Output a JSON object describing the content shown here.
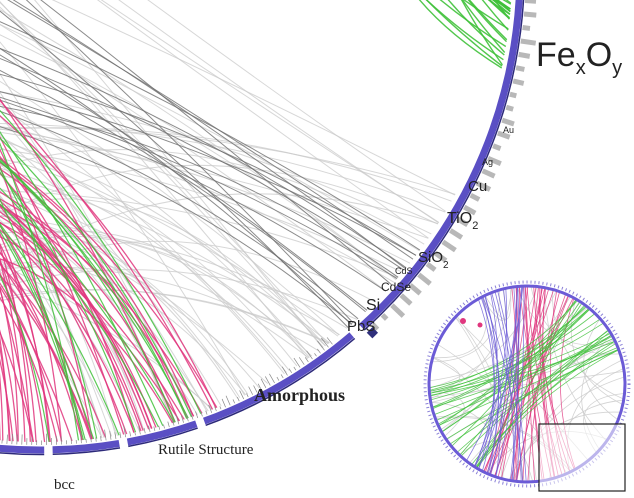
{
  "colors": {
    "ring": "#5a4fc4",
    "ring_dark": "#2d2a7a",
    "green": "#3fc13a",
    "pink": "#e0367e",
    "gray": "#c9c9c9",
    "dark_gray": "#6e6e6e",
    "tick_gray": "#b8b8b8",
    "cds_marker": "#2f2f7a",
    "inset_purple": "#6b5bd6"
  },
  "labels": {
    "fexoy_base": "Fe",
    "fexoy_sub1": "x",
    "fexoy_mid": "O",
    "fexoy_sub2": "y",
    "au": "Au",
    "ag": "Ag",
    "cu": "Cu",
    "tio2_base": "TiO",
    "tio2_sub": "2",
    "sio2_base": "SiO",
    "sio2_sub": "2",
    "cds": "CdS",
    "cdse": "CdSe",
    "si": "Si",
    "pbs": "PbS",
    "amorphous": "Amorphous",
    "rutile": "Rutile Structure",
    "bcc": "bcc"
  }
}
